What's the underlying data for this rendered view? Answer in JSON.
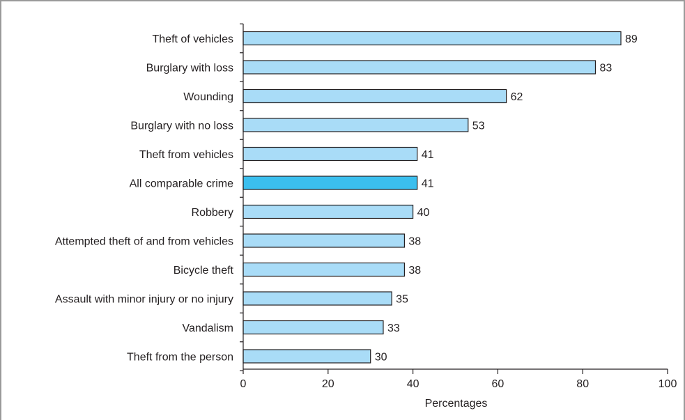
{
  "chart_data": {
    "type": "bar",
    "orientation": "horizontal",
    "categories": [
      "Theft of vehicles",
      "Burglary with loss",
      "Wounding",
      "Burglary with no loss",
      "Theft from vehicles",
      "All comparable crime",
      "Robbery",
      "Attempted theft of and from vehicles",
      "Bicycle theft",
      "Assault with minor injury or no injury",
      "Vandalism",
      "Theft from the person"
    ],
    "values": [
      89,
      83,
      62,
      53,
      41,
      41,
      40,
      38,
      38,
      35,
      33,
      30
    ],
    "highlight_index": 5,
    "xlabel": "Percentages",
    "ylabel": "",
    "title": "",
    "xlim": [
      0,
      100
    ],
    "xticks": [
      0,
      20,
      40,
      60,
      80,
      100
    ],
    "grid": false,
    "data_labels": true
  },
  "colors": {
    "bar_fill": "#a9dcf7",
    "bar_highlight": "#3bbfee",
    "bar_stroke": "#231f20",
    "axis": "#231f20",
    "frame": "#9a9a9a"
  }
}
